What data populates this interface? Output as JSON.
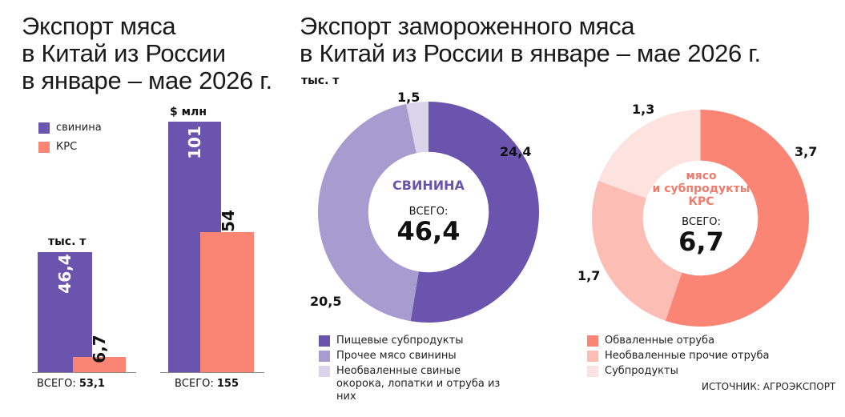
{
  "left": {
    "title_lines": [
      "Экспорт мяса",
      "в Китай из России",
      "в январе – мае 2026 г."
    ],
    "legend": [
      {
        "label": "свинина",
        "color": "#6b54ad"
      },
      {
        "label": "КРС",
        "color": "#fa8575"
      }
    ]
  },
  "right": {
    "title_lines": [
      "Экспорт замороженного мяса",
      "в Китай из России в январе – мае 2026 г."
    ],
    "unit": "тыс. т"
  },
  "source": "ИСТОЧНИК: АГРОЭКСПОРТ",
  "chart_data": [
    {
      "type": "bar",
      "unit": "тыс. т",
      "series": [
        {
          "name": "свинина",
          "value": 46.4,
          "label": "46,4",
          "color": "#6b54ad"
        },
        {
          "name": "КРС",
          "value": 6.7,
          "label": "6,7",
          "color": "#fa8575"
        }
      ],
      "total_label": "ВСЕГО:",
      "total_value": "53,1"
    },
    {
      "type": "bar",
      "unit": "$ млн",
      "series": [
        {
          "name": "свинина",
          "value": 101,
          "label": "101",
          "color": "#6b54ad"
        },
        {
          "name": "КРС",
          "value": 54,
          "label": "54",
          "color": "#fa8575"
        }
      ],
      "total_label": "ВСЕГО:",
      "total_value": "155"
    },
    {
      "type": "pie",
      "center_title": "СВИНИНА",
      "center_color": "#6b54ad",
      "total_label": "ВСЕГО:",
      "total_value": "46,4",
      "slices": [
        {
          "name": "Пищевые субпродукты",
          "value": 24.4,
          "label": "24,4",
          "color": "#6b54ad"
        },
        {
          "name": "Прочее мясо свинины",
          "value": 20.5,
          "label": "20,5",
          "color": "#a79ccf"
        },
        {
          "name": "Необваленные свиные окорока, лопатки и отруба из них",
          "value": 1.5,
          "label": "1,5",
          "color": "#d9d4ea"
        }
      ]
    },
    {
      "type": "pie",
      "center_title": "мясо\nи субпродукты\nКРС",
      "center_color": "#f07a6b",
      "total_label": "ВСЕГО:",
      "total_value": "6,7",
      "slices": [
        {
          "name": "Обваленные отруба",
          "value": 3.7,
          "label": "3,7",
          "color": "#fa8575"
        },
        {
          "name": "Необваленные прочие отруба",
          "value": 1.7,
          "label": "1,7",
          "color": "#fcbdb4"
        },
        {
          "name": "Субпродукты",
          "value": 1.3,
          "label": "1,3",
          "color": "#fde3df"
        }
      ]
    }
  ]
}
